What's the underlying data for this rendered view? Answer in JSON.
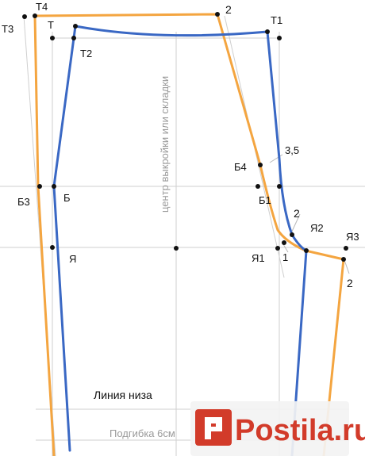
{
  "labels": {
    "t4": "Т4",
    "t3": "Т3",
    "t": "Т",
    "t2": "Т2",
    "p2_top": "2",
    "t1": "Т1",
    "b4": "Б4",
    "v35": "3,5",
    "b3": "Б3",
    "b": "Б",
    "b1": "Б1",
    "p2_mid": "2",
    "ya2": "Я2",
    "ya3": "Я3",
    "ya": "Я",
    "ya1": "Я1",
    "p1": "1",
    "p2_low": "2",
    "center": "центр выкройки или складки",
    "hem_line": "Линия низа",
    "hem_fold": "Подгибка 6см"
  },
  "watermark": {
    "text": "Postila.ru"
  },
  "colors": {
    "back_piece": "#f4a540",
    "front_piece": "#3a68c4",
    "guides": "#cfcfcf",
    "watermark": "#d23b2a"
  }
}
